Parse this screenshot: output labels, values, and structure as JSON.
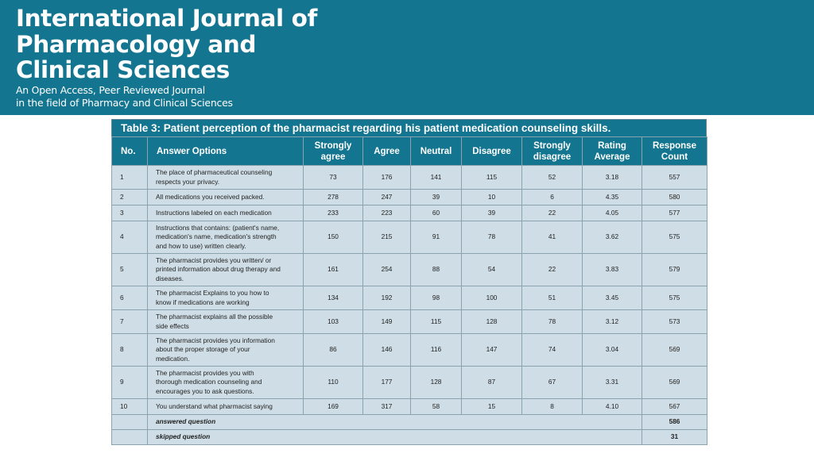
{
  "journal": {
    "title_lines": [
      "International Journal of",
      "Pharmacology and",
      "Clinical Sciences"
    ],
    "subtitle_lines": [
      "An Open Access, Peer Reviewed Journal",
      "in the field of Pharmacy and Clinical Sciences"
    ],
    "banner_color": "#137590"
  },
  "table": {
    "caption": "Table 3: Patient perception of the pharmacist regarding his patient medication counseling skills.",
    "headers": {
      "no": "No.",
      "answer_options": "Answer Options",
      "strongly_agree": [
        "Strongly",
        "agree"
      ],
      "agree": "Agree",
      "neutral": "Neutral",
      "disagree": "Disagree",
      "strongly_disagree": [
        "Strongly",
        "disagree"
      ],
      "rating_average": [
        "Rating",
        "Average"
      ],
      "response_count": [
        "Response",
        "Count"
      ]
    },
    "rows": [
      {
        "no": "1",
        "option": [
          "The place of pharmaceutical counseling",
          "respects your privacy."
        ],
        "sa": "73",
        "a": "176",
        "n": "141",
        "d": "115",
        "sd": "52",
        "avg": "3.18",
        "count": "557"
      },
      {
        "no": "2",
        "option": [
          "All medications you received packed."
        ],
        "sa": "278",
        "a": "247",
        "n": "39",
        "d": "10",
        "sd": "6",
        "avg": "4.35",
        "count": "580"
      },
      {
        "no": "3",
        "option": [
          "Instructions labeled on each medication"
        ],
        "sa": "233",
        "a": "223",
        "n": "60",
        "d": "39",
        "sd": "22",
        "avg": "4.05",
        "count": "577"
      },
      {
        "no": "4",
        "option": [
          "Instructions that contains: (patient's name,",
          "medication's name, medication's strength",
          "and how to use) written clearly."
        ],
        "sa": "150",
        "a": "215",
        "n": "91",
        "d": "78",
        "sd": "41",
        "avg": "3.62",
        "count": "575"
      },
      {
        "no": "5",
        "option": [
          "The pharmacist provides you written/ or",
          "printed information about drug therapy and",
          "diseases."
        ],
        "sa": "161",
        "a": "254",
        "n": "88",
        "d": "54",
        "sd": "22",
        "avg": "3.83",
        "count": "579"
      },
      {
        "no": "6",
        "option": [
          "The pharmacist Explains to you how to",
          "know if medications are working"
        ],
        "sa": "134",
        "a": "192",
        "n": "98",
        "d": "100",
        "sd": "51",
        "avg": "3.45",
        "count": "575"
      },
      {
        "no": "7",
        "option": [
          "The pharmacist explains all the possible",
          "side effects"
        ],
        "sa": "103",
        "a": "149",
        "n": "115",
        "d": "128",
        "sd": "78",
        "avg": "3.12",
        "count": "573"
      },
      {
        "no": "8",
        "option": [
          "The pharmacist provides you information",
          "about the proper storage of your",
          "medication."
        ],
        "sa": "86",
        "a": "146",
        "n": "116",
        "d": "147",
        "sd": "74",
        "avg": "3.04",
        "count": "569"
      },
      {
        "no": "9",
        "option": [
          "The pharmacist provides you with",
          "thorough medication counseling and",
          "encourages you to ask questions."
        ],
        "sa": "110",
        "a": "177",
        "n": "128",
        "d": "87",
        "sd": "67",
        "avg": "3.31",
        "count": "569"
      },
      {
        "no": "10",
        "option": [
          "You understand what pharmacist saying"
        ],
        "sa": "169",
        "a": "317",
        "n": "58",
        "d": "15",
        "sd": "8",
        "avg": "4.10",
        "count": "567"
      }
    ],
    "summary": [
      {
        "label": "answered question",
        "value": "586"
      },
      {
        "label": "skipped question",
        "value": "31"
      }
    ]
  }
}
